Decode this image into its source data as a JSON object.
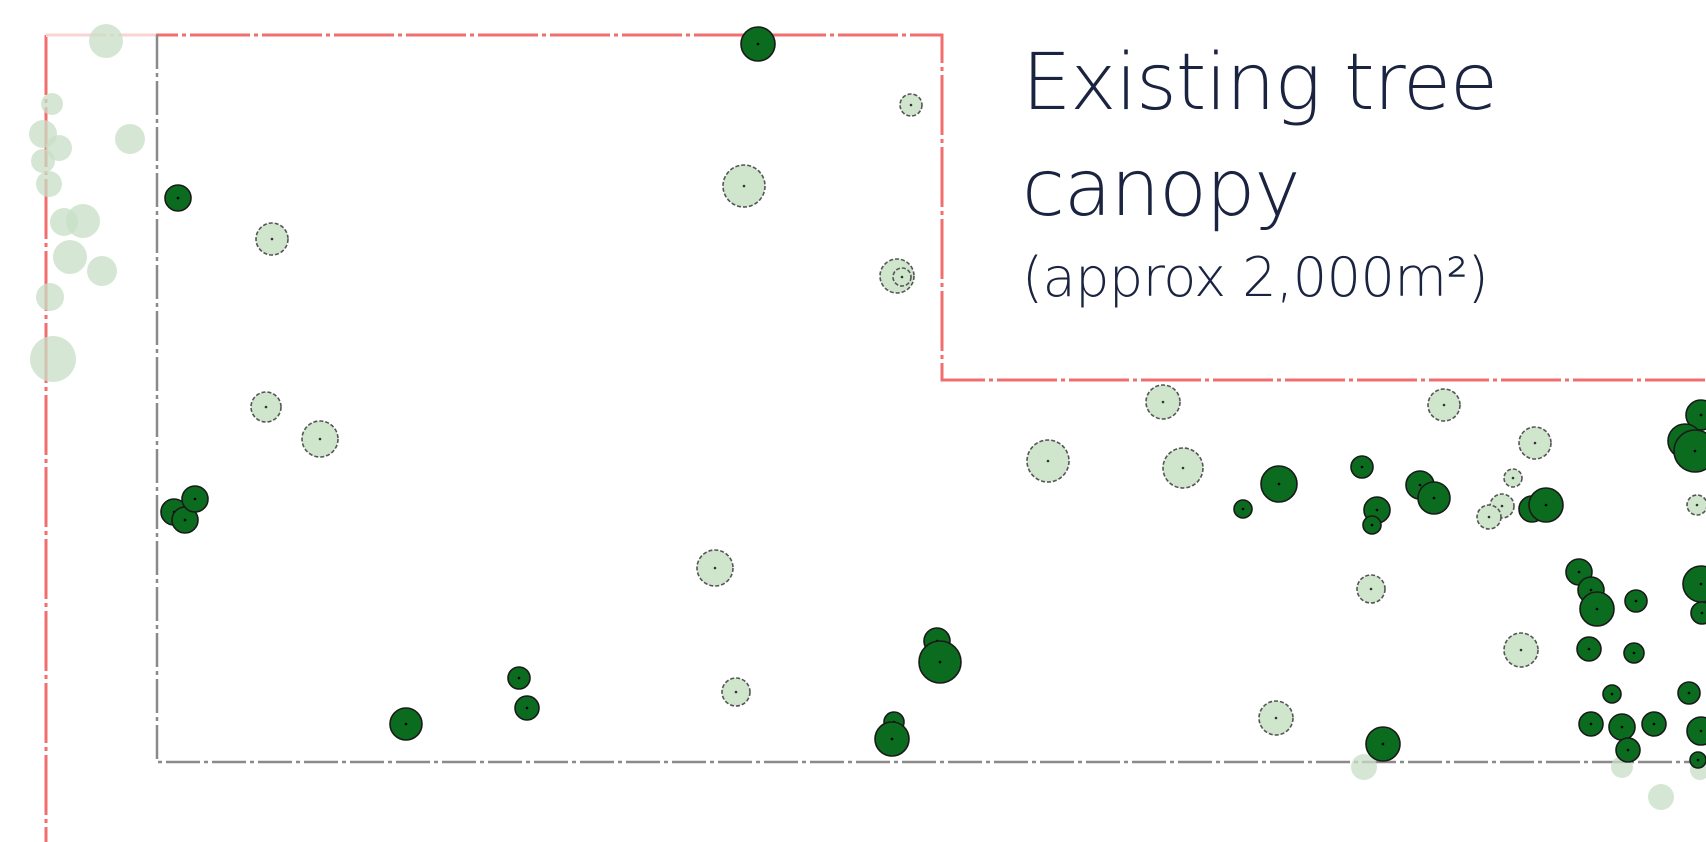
{
  "caption": {
    "title_line1": "Existing tree",
    "title_line2": "canopy",
    "subtitle": "(approx 2,000m²)"
  },
  "colors": {
    "site_boundary": "#ee5555",
    "lot_boundary": "#888888",
    "tree_retained_fill": "#0b6b1f",
    "tree_existing_fill": "#cfe6cd",
    "tree_offsite_fill": "#c7dfc5",
    "tree_outline": "#1a1a1a",
    "text": "#1a2340"
  }
}
